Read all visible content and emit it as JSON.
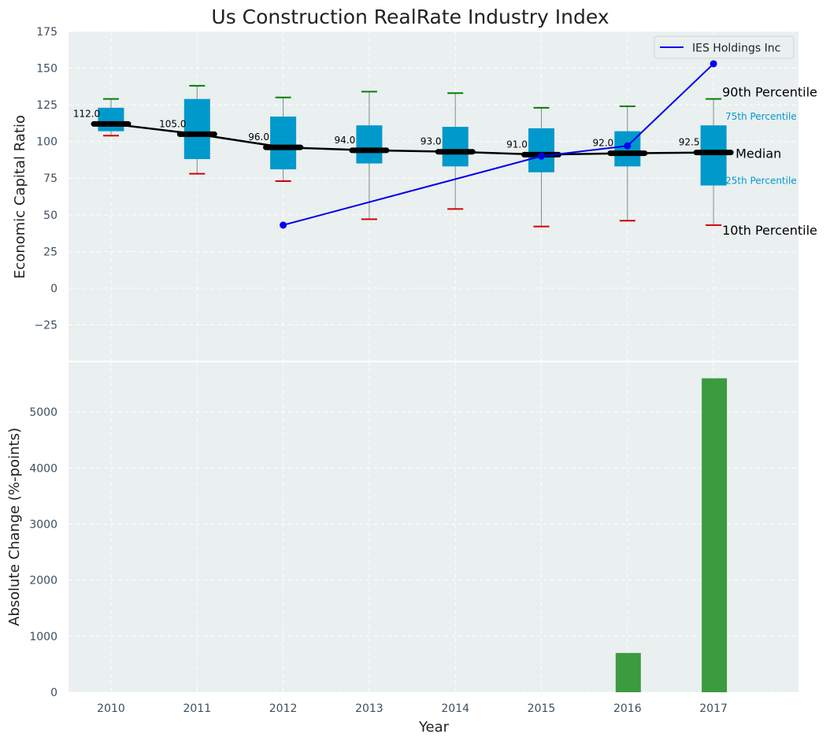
{
  "title": "Us Construction RealRate Industry Index",
  "colors": {
    "panel_bg": "#eaeff0",
    "box": "#0099cc",
    "whisker": "#7f8c8d",
    "p90": "#008000",
    "p10": "#d40000",
    "median": "#000000",
    "company": "#0000ee",
    "bar": "#3a9b3f",
    "pct_label": "#0099cc"
  },
  "chart_data": [
    {
      "type": "box",
      "panel": "top",
      "title": "Us Construction RealRate Industry Index",
      "xlabel": "",
      "ylabel": "Economic Capital Ratio",
      "ylim": [
        -50,
        175
      ],
      "yticks": [
        -25,
        0,
        25,
        50,
        75,
        100,
        125,
        150,
        175
      ],
      "grid": true,
      "legend": {
        "position": "top-right",
        "entries": [
          "IES Holdings Inc"
        ]
      },
      "categories": [
        "2010",
        "2011",
        "2012",
        "2013",
        "2014",
        "2015",
        "2016",
        "2017"
      ],
      "p10": [
        104,
        78,
        73,
        47,
        54,
        42,
        46,
        43
      ],
      "q1": [
        107,
        88,
        81,
        85,
        83,
        79,
        83,
        70
      ],
      "median": [
        112.0,
        105.0,
        96.0,
        94.0,
        93.0,
        91.0,
        92.0,
        92.5
      ],
      "median_labels": [
        "112.0",
        "105.0",
        "96.0",
        "94.0",
        "93.0",
        "91.0",
        "92.0",
        "92.5"
      ],
      "q3": [
        123,
        129,
        117,
        111,
        110,
        109,
        107,
        111
      ],
      "p90": [
        129,
        138,
        130,
        134,
        133,
        123,
        124,
        129
      ],
      "company": {
        "name": "IES Holdings Inc",
        "points": [
          [
            2012,
            43
          ],
          [
            2015,
            90
          ],
          [
            2016,
            97
          ],
          [
            2017,
            153
          ]
        ]
      },
      "annotations": {
        "p90": "90th Percentile",
        "q3": "75th Percentile",
        "median": "Median",
        "q1": "25th Percentile",
        "p10": "10th Percentile"
      }
    },
    {
      "type": "bar",
      "panel": "bottom",
      "xlabel": "Year",
      "ylabel": "Absolute Change (%-points)",
      "ylim": [
        0,
        5900
      ],
      "yticks": [
        0,
        1000,
        2000,
        3000,
        4000,
        5000
      ],
      "grid": true,
      "categories": [
        "2010",
        "2011",
        "2012",
        "2013",
        "2014",
        "2015",
        "2016",
        "2017"
      ],
      "values": [
        0,
        0,
        0,
        0,
        0,
        0,
        700,
        5600
      ]
    }
  ]
}
